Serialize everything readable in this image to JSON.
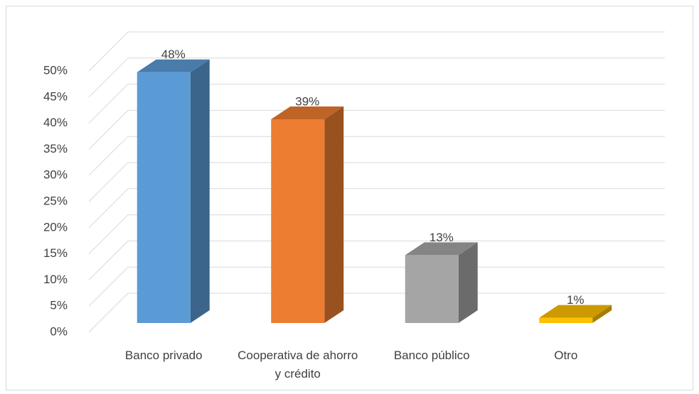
{
  "chart_data": {
    "type": "bar3d",
    "categories": [
      "Banco privado",
      "Cooperativa de ahorro y crédito",
      "Banco público",
      "Otro"
    ],
    "values": [
      48,
      39,
      13,
      1
    ],
    "value_labels": [
      "48%",
      "39%",
      "13%",
      "1%"
    ],
    "colors": [
      "#5b9bd5",
      "#ed7d31",
      "#a5a5a5",
      "#ffc000"
    ],
    "ylim": [
      0,
      50
    ],
    "yticks": [
      {
        "value": 0,
        "label": "0%"
      },
      {
        "value": 5,
        "label": "5%"
      },
      {
        "value": 10,
        "label": "10%"
      },
      {
        "value": 15,
        "label": "15%"
      },
      {
        "value": 20,
        "label": "20%"
      },
      {
        "value": 25,
        "label": "25%"
      },
      {
        "value": 30,
        "label": "30%"
      },
      {
        "value": 35,
        "label": "35%"
      },
      {
        "value": 40,
        "label": "40%"
      },
      {
        "value": 45,
        "label": "45%"
      },
      {
        "value": 50,
        "label": "50%"
      }
    ],
    "grid": true
  }
}
